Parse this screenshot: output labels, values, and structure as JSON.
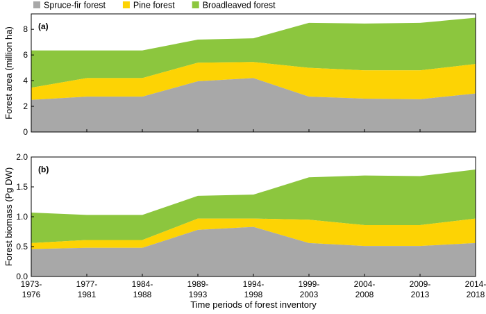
{
  "chart_data": {
    "type": "area",
    "stacked": true,
    "legend": [
      {
        "name": "Spruce-fir forest",
        "color": "#a8a8a8"
      },
      {
        "name": "Pine forest",
        "color": "#fdd304"
      },
      {
        "name": "Broadleaved forest",
        "color": "#8cc63e"
      }
    ],
    "categories": [
      [
        "1973-",
        "1976"
      ],
      [
        "1977-",
        "1981"
      ],
      [
        "1984-",
        "1988"
      ],
      [
        "1989-",
        "1993"
      ],
      [
        "1994-",
        "1998"
      ],
      [
        "1999-",
        "2003"
      ],
      [
        "2004-",
        "2008"
      ],
      [
        "2009-",
        "2013"
      ],
      [
        "2014-",
        "2018"
      ]
    ],
    "xlabel": "Time periods of forest inventory",
    "panels": [
      {
        "label": "(a)",
        "ylabel": "Forest area (million ha)",
        "ylim": [
          0,
          9.2
        ],
        "yticks": [
          "0",
          "2",
          "4",
          "6",
          "8"
        ],
        "ytick_values": [
          0,
          2,
          4,
          6,
          8
        ],
        "stack_totals": {
          "Spruce-fir forest": [
            2.5,
            2.75,
            2.75,
            3.95,
            4.2,
            2.75,
            2.6,
            2.55,
            3.0
          ],
          "Pine forest": [
            3.45,
            4.2,
            4.2,
            5.4,
            5.45,
            5.0,
            4.8,
            4.8,
            5.3
          ],
          "Broadleaved forest": [
            6.35,
            6.35,
            6.35,
            7.2,
            7.3,
            8.5,
            8.45,
            8.5,
            8.9
          ]
        }
      },
      {
        "label": "(b)",
        "ylabel": "Forest biomass (Pg DW)",
        "ylim": [
          0,
          2.0
        ],
        "yticks": [
          "0.0",
          "0.5",
          "1.0",
          "1.5",
          "2.0"
        ],
        "ytick_values": [
          0,
          0.5,
          1.0,
          1.5,
          2.0
        ],
        "stack_totals": {
          "Spruce-fir forest": [
            0.46,
            0.48,
            0.48,
            0.78,
            0.83,
            0.56,
            0.51,
            0.51,
            0.56
          ],
          "Pine forest": [
            0.56,
            0.61,
            0.61,
            0.97,
            0.97,
            0.95,
            0.86,
            0.86,
            0.97
          ],
          "Broadleaved forest": [
            1.07,
            1.03,
            1.03,
            1.35,
            1.37,
            1.66,
            1.69,
            1.68,
            1.79
          ]
        }
      }
    ]
  }
}
